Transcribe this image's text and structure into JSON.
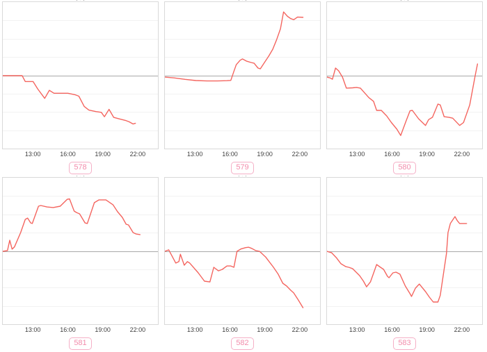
{
  "page": {
    "background": "#ffffff",
    "clipped_title_text": "( , )"
  },
  "chart_data": {
    "type": "line",
    "description": "Grid of six sparkline-style time-series charts, red line vs gray zero baseline, labeled by numbered badges",
    "x_tick_labels": [
      "13:00",
      "16:00",
      "19:00",
      "22:00"
    ],
    "x_tick_positions": [
      0.196,
      0.42,
      0.643,
      0.866
    ],
    "grid": "horizontal-only",
    "zero_baseline_frac": 0.5,
    "colors": {
      "line": "#f4645e",
      "zero_line": "#a8a8a8",
      "gridline": "#f2f2f2",
      "panel_border": "#d9d9d9",
      "tick_text": "#404040",
      "badge_text": "#f28cab",
      "badge_border": "#f5afc6"
    },
    "charts": [
      {
        "badge": "578",
        "points_pct_from_zero": [
          [
            0,
            0
          ],
          [
            0.125,
            0
          ],
          [
            0.145,
            -4
          ],
          [
            0.195,
            -4
          ],
          [
            0.225,
            -9
          ],
          [
            0.27,
            -15.5
          ],
          [
            0.3,
            -10
          ],
          [
            0.33,
            -12
          ],
          [
            0.42,
            -12
          ],
          [
            0.465,
            -13
          ],
          [
            0.49,
            -14
          ],
          [
            0.525,
            -21
          ],
          [
            0.555,
            -23.5
          ],
          [
            0.6,
            -24.5
          ],
          [
            0.635,
            -25
          ],
          [
            0.655,
            -28
          ],
          [
            0.685,
            -23
          ],
          [
            0.715,
            -28.5
          ],
          [
            0.75,
            -29.5
          ],
          [
            0.79,
            -30.5
          ],
          [
            0.815,
            -31.5
          ],
          [
            0.84,
            -33
          ],
          [
            0.855,
            -32.5
          ]
        ]
      },
      {
        "badge": "579",
        "points_pct_from_zero": [
          [
            0,
            -1
          ],
          [
            0.06,
            -1.5
          ],
          [
            0.13,
            -2.5
          ],
          [
            0.2,
            -3.3
          ],
          [
            0.27,
            -3.6
          ],
          [
            0.34,
            -3.6
          ],
          [
            0.4,
            -3.4
          ],
          [
            0.425,
            -3.2
          ],
          [
            0.445,
            3
          ],
          [
            0.46,
            7.5
          ],
          [
            0.485,
            10.5
          ],
          [
            0.5,
            11.4
          ],
          [
            0.525,
            10
          ],
          [
            0.555,
            9
          ],
          [
            0.575,
            8.5
          ],
          [
            0.6,
            5.2
          ],
          [
            0.615,
            4.7
          ],
          [
            0.645,
            9.5
          ],
          [
            0.67,
            13.5
          ],
          [
            0.695,
            18
          ],
          [
            0.72,
            24.5
          ],
          [
            0.745,
            32
          ],
          [
            0.765,
            43.5
          ],
          [
            0.79,
            40.5
          ],
          [
            0.81,
            39
          ],
          [
            0.83,
            38.2
          ],
          [
            0.855,
            40
          ],
          [
            0.89,
            39.8
          ]
        ]
      },
      {
        "badge": "580",
        "points_pct_from_zero": [
          [
            0,
            -1
          ],
          [
            0.02,
            -1.5
          ],
          [
            0.035,
            -2.4
          ],
          [
            0.055,
            5.2
          ],
          [
            0.075,
            3.3
          ],
          [
            0.1,
            -1
          ],
          [
            0.125,
            -8.5
          ],
          [
            0.165,
            -8.3
          ],
          [
            0.19,
            -8
          ],
          [
            0.215,
            -8.5
          ],
          [
            0.27,
            -15
          ],
          [
            0.3,
            -17.5
          ],
          [
            0.32,
            -23.7
          ],
          [
            0.35,
            -23.7
          ],
          [
            0.385,
            -27.5
          ],
          [
            0.415,
            -32
          ],
          [
            0.45,
            -36.5
          ],
          [
            0.475,
            -40.8
          ],
          [
            0.51,
            -30.8
          ],
          [
            0.535,
            -24
          ],
          [
            0.55,
            -23.7
          ],
          [
            0.59,
            -29.4
          ],
          [
            0.635,
            -34
          ],
          [
            0.655,
            -30
          ],
          [
            0.68,
            -28.4
          ],
          [
            0.715,
            -19.4
          ],
          [
            0.73,
            -20
          ],
          [
            0.755,
            -28
          ],
          [
            0.785,
            -28.4
          ],
          [
            0.81,
            -29
          ],
          [
            0.855,
            -34
          ],
          [
            0.88,
            -32
          ],
          [
            0.92,
            -20
          ],
          [
            0.955,
            0
          ],
          [
            0.97,
            8
          ]
        ]
      },
      {
        "badge": "581",
        "points_pct_from_zero": [
          [
            0,
            0
          ],
          [
            0.03,
            0.5
          ],
          [
            0.045,
            7.6
          ],
          [
            0.06,
            1.5
          ],
          [
            0.075,
            3
          ],
          [
            0.115,
            12.8
          ],
          [
            0.145,
            21.8
          ],
          [
            0.16,
            22.7
          ],
          [
            0.18,
            19.4
          ],
          [
            0.19,
            19
          ],
          [
            0.23,
            30.8
          ],
          [
            0.245,
            31.3
          ],
          [
            0.285,
            30.3
          ],
          [
            0.325,
            29.9
          ],
          [
            0.37,
            30.8
          ],
          [
            0.415,
            35.5
          ],
          [
            0.43,
            35.8
          ],
          [
            0.46,
            27.5
          ],
          [
            0.475,
            26.5
          ],
          [
            0.495,
            25.6
          ],
          [
            0.53,
            19.4
          ],
          [
            0.545,
            19
          ],
          [
            0.59,
            33.2
          ],
          [
            0.62,
            35.1
          ],
          [
            0.665,
            35.1
          ],
          [
            0.71,
            31.8
          ],
          [
            0.74,
            27
          ],
          [
            0.77,
            23.2
          ],
          [
            0.795,
            18.5
          ],
          [
            0.81,
            18
          ],
          [
            0.84,
            12.8
          ],
          [
            0.86,
            11.8
          ],
          [
            0.885,
            11.4
          ]
        ]
      },
      {
        "badge": "582",
        "points_pct_from_zero": [
          [
            0,
            0
          ],
          [
            0.025,
            1
          ],
          [
            0.07,
            -8
          ],
          [
            0.09,
            -7
          ],
          [
            0.1,
            -2
          ],
          [
            0.125,
            -9.5
          ],
          [
            0.145,
            -7
          ],
          [
            0.16,
            -8
          ],
          [
            0.215,
            -14.7
          ],
          [
            0.255,
            -20.4
          ],
          [
            0.29,
            -20.9
          ],
          [
            0.315,
            -10.9
          ],
          [
            0.345,
            -13.3
          ],
          [
            0.37,
            -12.3
          ],
          [
            0.4,
            -10
          ],
          [
            0.425,
            -10
          ],
          [
            0.445,
            -10.9
          ],
          [
            0.465,
            0
          ],
          [
            0.49,
            1.6
          ],
          [
            0.52,
            2.5
          ],
          [
            0.54,
            2.8
          ],
          [
            0.56,
            2
          ],
          [
            0.585,
            0.5
          ],
          [
            0.61,
            0
          ],
          [
            0.65,
            -4
          ],
          [
            0.7,
            -10.9
          ],
          [
            0.73,
            -15.6
          ],
          [
            0.76,
            -21.8
          ],
          [
            0.785,
            -23.7
          ],
          [
            0.81,
            -26.5
          ],
          [
            0.83,
            -28.4
          ],
          [
            0.86,
            -33.2
          ],
          [
            0.89,
            -38.5
          ]
        ]
      },
      {
        "badge": "583",
        "points_pct_from_zero": [
          [
            0,
            0
          ],
          [
            0.03,
            -1
          ],
          [
            0.06,
            -4.3
          ],
          [
            0.09,
            -8.5
          ],
          [
            0.12,
            -10.4
          ],
          [
            0.14,
            -10.9
          ],
          [
            0.165,
            -11.8
          ],
          [
            0.21,
            -16.6
          ],
          [
            0.235,
            -20.4
          ],
          [
            0.255,
            -24.2
          ],
          [
            0.28,
            -20.9
          ],
          [
            0.32,
            -9
          ],
          [
            0.345,
            -10.9
          ],
          [
            0.365,
            -12.3
          ],
          [
            0.39,
            -17.1
          ],
          [
            0.4,
            -18
          ],
          [
            0.425,
            -14.7
          ],
          [
            0.445,
            -14.2
          ],
          [
            0.47,
            -15.6
          ],
          [
            0.505,
            -23.7
          ],
          [
            0.535,
            -28.9
          ],
          [
            0.545,
            -30.8
          ],
          [
            0.57,
            -25.1
          ],
          [
            0.595,
            -22.3
          ],
          [
            0.635,
            -27.5
          ],
          [
            0.66,
            -31.3
          ],
          [
            0.685,
            -34.6
          ],
          [
            0.715,
            -34.6
          ],
          [
            0.73,
            -30
          ],
          [
            0.77,
            -1.4
          ],
          [
            0.78,
            12.8
          ],
          [
            0.795,
            19
          ],
          [
            0.825,
            23.7
          ],
          [
            0.84,
            20.9
          ],
          [
            0.855,
            19
          ],
          [
            0.9,
            19
          ]
        ]
      }
    ]
  }
}
